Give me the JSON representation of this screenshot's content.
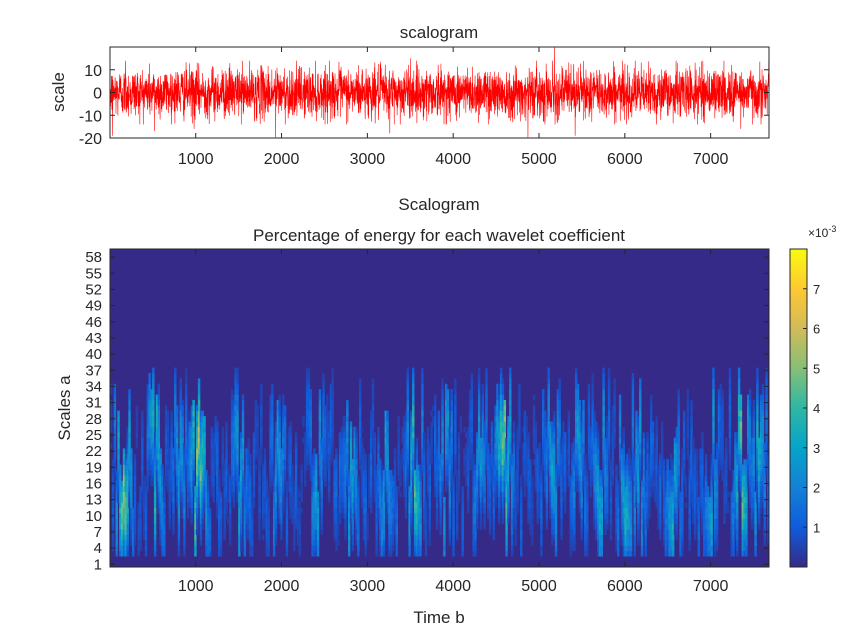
{
  "chart_data": [
    {
      "type": "line",
      "title": "scalogram",
      "xlabel": "",
      "ylabel": "scale",
      "xlim": [
        1,
        7680
      ],
      "ylim": [
        -20,
        20
      ],
      "xticks": [
        1000,
        2000,
        3000,
        4000,
        5000,
        6000,
        7000
      ],
      "yticks": [
        -20,
        -10,
        0,
        10
      ],
      "color": "#ff0000",
      "n_points": 7680,
      "amplitude_sd": 5.5,
      "spikes": [
        {
          "x": 30,
          "y": -19
        },
        {
          "x": 180,
          "y": 14
        },
        {
          "x": 520,
          "y": -17
        },
        {
          "x": 980,
          "y": -16
        },
        {
          "x": 1930,
          "y": -21
        },
        {
          "x": 3260,
          "y": -18
        },
        {
          "x": 3500,
          "y": 15
        },
        {
          "x": 4870,
          "y": -20
        },
        {
          "x": 5180,
          "y": 21
        },
        {
          "x": 5420,
          "y": -19
        },
        {
          "x": 7350,
          "y": -16
        }
      ],
      "grid": false
    },
    {
      "type": "heatmap",
      "title": "Scalogram",
      "subtitle": "Percentage of energy for each wavelet coefficient",
      "xlabel": "Time b",
      "ylabel": "Scales a",
      "xlim": [
        1,
        7680
      ],
      "ylim": [
        1,
        60
      ],
      "xticks": [
        1000,
        2000,
        3000,
        4000,
        5000,
        6000,
        7000
      ],
      "yticks": [
        1,
        4,
        7,
        10,
        13,
        16,
        19,
        22,
        25,
        28,
        31,
        34,
        37,
        40,
        43,
        46,
        49,
        52,
        55,
        58
      ],
      "colormap": "parula",
      "colorbar": {
        "min": 0,
        "max": 0.008,
        "exponent_label": "×10",
        "exponent": "-3",
        "ticks": [
          1,
          2,
          3,
          4,
          5,
          6,
          7
        ]
      },
      "energy_scale_range": [
        3,
        38
      ],
      "peak_energy_percent": 0.0079,
      "hotspots": [
        {
          "x": 150,
          "scale": 20,
          "level": 0.72
        },
        {
          "x": 520,
          "scale": 12,
          "level": 0.55
        },
        {
          "x": 800,
          "scale": 28,
          "level": 0.4
        },
        {
          "x": 1020,
          "scale": 20,
          "level": 0.78
        },
        {
          "x": 1500,
          "scale": 22,
          "level": 0.45
        },
        {
          "x": 1950,
          "scale": 18,
          "level": 0.4
        },
        {
          "x": 2400,
          "scale": 25,
          "level": 0.42
        },
        {
          "x": 2800,
          "scale": 16,
          "level": 0.45
        },
        {
          "x": 3200,
          "scale": 22,
          "level": 0.42
        },
        {
          "x": 3540,
          "scale": 20,
          "level": 0.6
        },
        {
          "x": 3900,
          "scale": 16,
          "level": 0.42
        },
        {
          "x": 4300,
          "scale": 22,
          "level": 0.4
        },
        {
          "x": 4580,
          "scale": 16,
          "level": 0.72
        },
        {
          "x": 5150,
          "scale": 25,
          "level": 0.45
        },
        {
          "x": 5450,
          "scale": 20,
          "level": 0.42
        },
        {
          "x": 5700,
          "scale": 22,
          "level": 0.48
        },
        {
          "x": 6000,
          "scale": 18,
          "level": 0.5
        },
        {
          "x": 6150,
          "scale": 20,
          "level": 0.42
        },
        {
          "x": 6550,
          "scale": 12,
          "level": 0.48
        },
        {
          "x": 7000,
          "scale": 25,
          "level": 0.42
        },
        {
          "x": 7350,
          "scale": 20,
          "level": 0.66
        },
        {
          "x": 7550,
          "scale": 26,
          "level": 0.5
        }
      ]
    }
  ]
}
